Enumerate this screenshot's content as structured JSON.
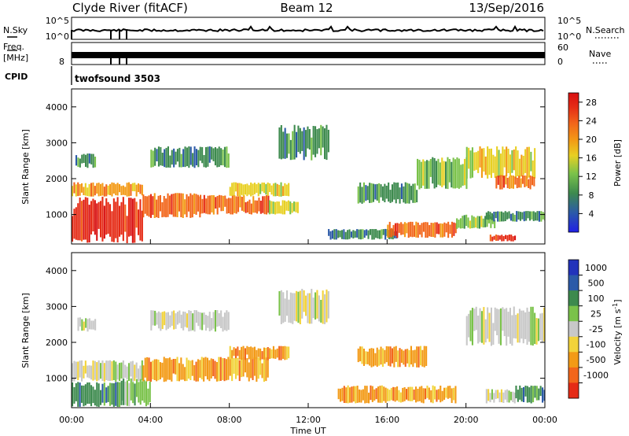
{
  "header": {
    "station": "Clyde River (fitACF)",
    "beam": "Beam 12",
    "date": "13/Sep/2016"
  },
  "strips": {
    "nsky_label": "N.Sky",
    "nsky_top": "10^5",
    "nsky_bottom": "10^0",
    "nsearch_label": "N.Search",
    "nsearch_top": "10^5",
    "nsearch_bottom": "10^0",
    "freq_label_line1": "Freq.",
    "freq_label_line2": "[MHz]",
    "freq_tick": "8",
    "nave_label": "Nave",
    "nave_top": "60",
    "nave_bottom": "0",
    "cpid_label": "CPID",
    "cpid_value": "twofsound 3503"
  },
  "chart_data": [
    {
      "type": "heatmap",
      "name": "Power",
      "ylabel": "Slant Range [km]",
      "yticks": [
        "1000",
        "2000",
        "3000",
        "4000"
      ],
      "yvalues": [
        1000,
        2000,
        3000,
        4000
      ],
      "ylim": [
        180,
        4500
      ],
      "xlim": [
        0,
        24
      ],
      "colorbar": {
        "label": "Power [dB]",
        "ticks": [
          "4",
          "8",
          "12",
          "16",
          "20",
          "24",
          "28"
        ],
        "values": [
          4,
          8,
          12,
          16,
          20,
          24,
          28
        ],
        "range": [
          0,
          30
        ],
        "colors": [
          "#1f1fe6",
          "#2c5aa8",
          "#3d8a4e",
          "#7ac24a",
          "#e8d023",
          "#f39a16",
          "#f2661b",
          "#e52b16",
          "#d80f10"
        ]
      },
      "bands": [
        {
          "t0": 0.0,
          "t1": 3.6,
          "r0": 200,
          "r1": 1500,
          "value": 26
        },
        {
          "t0": 0.0,
          "t1": 3.6,
          "r0": 1500,
          "r1": 1900,
          "value": 18
        },
        {
          "t0": 0.2,
          "t1": 1.2,
          "r0": 2300,
          "r1": 2700,
          "value": 9
        },
        {
          "t0": 3.6,
          "t1": 6.5,
          "r0": 900,
          "r1": 1600,
          "value": 24
        },
        {
          "t0": 6.5,
          "t1": 10.0,
          "r0": 1000,
          "r1": 1550,
          "value": 21
        },
        {
          "t0": 8.0,
          "t1": 11.0,
          "r0": 1500,
          "r1": 1900,
          "value": 14
        },
        {
          "t0": 10.0,
          "t1": 11.5,
          "r0": 1000,
          "r1": 1400,
          "value": 16
        },
        {
          "t0": 4.0,
          "t1": 8.0,
          "r0": 2300,
          "r1": 2900,
          "value": 7
        },
        {
          "t0": 10.5,
          "t1": 13.0,
          "r0": 2500,
          "r1": 3500,
          "value": 6
        },
        {
          "t0": 13.0,
          "t1": 16.5,
          "r0": 300,
          "r1": 600,
          "value": 9
        },
        {
          "t0": 16.0,
          "t1": 19.5,
          "r0": 350,
          "r1": 800,
          "value": 22
        },
        {
          "t0": 19.5,
          "t1": 21.5,
          "r0": 600,
          "r1": 1000,
          "value": 12
        },
        {
          "t0": 14.5,
          "t1": 17.5,
          "r0": 1300,
          "r1": 1900,
          "value": 7
        },
        {
          "t0": 17.5,
          "t1": 20.0,
          "r0": 1700,
          "r1": 2600,
          "value": 10
        },
        {
          "t0": 20.0,
          "t1": 23.5,
          "r0": 2000,
          "r1": 2900,
          "value": 16
        },
        {
          "t0": 21.5,
          "t1": 23.5,
          "r0": 1700,
          "r1": 2100,
          "value": 22
        },
        {
          "t0": 21.0,
          "t1": 24.0,
          "r0": 800,
          "r1": 1100,
          "value": 8
        },
        {
          "t0": 21.2,
          "t1": 22.5,
          "r0": 250,
          "r1": 450,
          "value": 26
        }
      ]
    },
    {
      "type": "heatmap",
      "name": "Velocity",
      "ylabel": "Slant Range [km]",
      "yticks": [
        "1000",
        "2000",
        "3000",
        "4000"
      ],
      "yvalues": [
        1000,
        2000,
        3000,
        4000
      ],
      "ylim": [
        180,
        4500
      ],
      "xlim": [
        0,
        24
      ],
      "xticks": [
        "00:00",
        "04:00",
        "08:00",
        "12:00",
        "16:00",
        "20:00",
        "00:00"
      ],
      "xvalues": [
        0,
        4,
        8,
        12,
        16,
        20,
        24
      ],
      "xlabel": "Time UT",
      "colorbar": {
        "label": "Velocity [m s^-1]",
        "ticks": [
          "1000",
          "500",
          "100",
          "25",
          "-25",
          "-100",
          "-500",
          "-1000"
        ],
        "colors": [
          "#2233bb",
          "#2c5aa8",
          "#3d8a4e",
          "#7ac24a",
          "#c8c8c8",
          "#f2d33a",
          "#f39a16",
          "#f2661b",
          "#e52b16"
        ]
      },
      "bands": [
        {
          "t0": 0.0,
          "t1": 2.5,
          "r0": 200,
          "r1": 900,
          "value": 2
        },
        {
          "t0": 0.0,
          "t1": 3.6,
          "r0": 900,
          "r1": 1500,
          "value": 4
        },
        {
          "t0": 2.5,
          "t1": 4.0,
          "r0": 200,
          "r1": 1000,
          "value": 3
        },
        {
          "t0": 3.6,
          "t1": 10.0,
          "r0": 900,
          "r1": 1600,
          "value": 6
        },
        {
          "t0": 8.0,
          "t1": 11.0,
          "r0": 1500,
          "r1": 1900,
          "value": 6
        },
        {
          "t0": 0.3,
          "t1": 1.2,
          "r0": 2300,
          "r1": 2700,
          "value": 4
        },
        {
          "t0": 4.0,
          "t1": 8.0,
          "r0": 2300,
          "r1": 2900,
          "value": 4
        },
        {
          "t0": 10.5,
          "t1": 13.0,
          "r0": 2500,
          "r1": 3500,
          "value": 4
        },
        {
          "t0": 13.5,
          "t1": 19.5,
          "r0": 300,
          "r1": 800,
          "value": 6
        },
        {
          "t0": 14.5,
          "t1": 18.0,
          "r0": 1300,
          "r1": 1900,
          "value": 6
        },
        {
          "t0": 20.0,
          "t1": 24.0,
          "r0": 1900,
          "r1": 3000,
          "value": 4
        },
        {
          "t0": 21.0,
          "t1": 22.5,
          "r0": 300,
          "r1": 700,
          "value": 4
        },
        {
          "t0": 22.5,
          "t1": 24.0,
          "r0": 300,
          "r1": 800,
          "value": 2
        }
      ]
    }
  ]
}
